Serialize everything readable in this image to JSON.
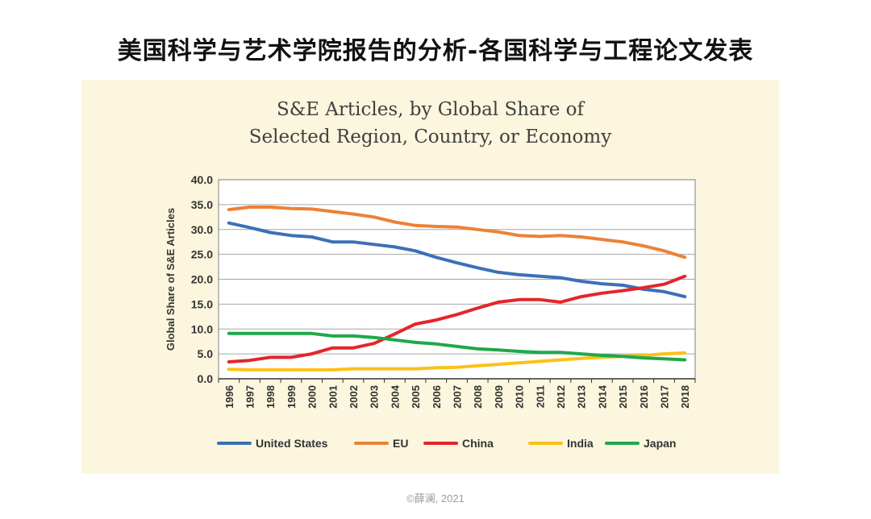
{
  "slide": {
    "title": "美国科学与艺术学院报告的分析-各国科学与工程论文发表",
    "footer": "©薛澜, 2021"
  },
  "colors": {
    "panel_background": "#fbf6dd",
    "United States": "#3c70b8",
    "EU": "#ec8235",
    "China": "#e3262b",
    "India": "#fcc117",
    "Japan": "#20a84a"
  },
  "chart_data": {
    "type": "line",
    "title_lines": [
      "S&E Articles, by Global Share of",
      "Selected Region, Country, or Economy"
    ],
    "xlabel": "",
    "ylabel": "Global Share of S&E Articles",
    "ylim": [
      0,
      40
    ],
    "yticks": [
      "0.0",
      "5.0",
      "10.0",
      "15.0",
      "20.0",
      "25.0",
      "30.0",
      "35.0",
      "40.0"
    ],
    "grid": true,
    "legend_position": "bottom",
    "x": [
      "1996",
      "1997",
      "1998",
      "1999",
      "2000",
      "2001",
      "2002",
      "2003",
      "2004",
      "2005",
      "2006",
      "2007",
      "2008",
      "2009",
      "2010",
      "2011",
      "2012",
      "2013",
      "2014",
      "2015",
      "2016",
      "2017",
      "2018"
    ],
    "series": [
      {
        "name": "United States",
        "values": [
          31.3,
          30.4,
          29.4,
          28.8,
          28.5,
          27.5,
          27.5,
          27.0,
          26.5,
          25.7,
          24.4,
          23.3,
          22.3,
          21.4,
          20.9,
          20.6,
          20.3,
          19.6,
          19.1,
          18.8,
          18.0,
          17.5,
          16.5
        ]
      },
      {
        "name": "EU",
        "values": [
          34.0,
          34.5,
          34.5,
          34.2,
          34.1,
          33.6,
          33.1,
          32.5,
          31.5,
          30.8,
          30.6,
          30.5,
          30.0,
          29.5,
          28.8,
          28.6,
          28.8,
          28.5,
          28.0,
          27.5,
          26.7,
          25.7,
          24.4
        ]
      },
      {
        "name": "China",
        "values": [
          3.4,
          3.7,
          4.3,
          4.3,
          5.0,
          6.2,
          6.2,
          7.1,
          9.0,
          11.0,
          11.8,
          12.9,
          14.2,
          15.4,
          15.9,
          15.9,
          15.4,
          16.5,
          17.2,
          17.7,
          18.3,
          19.0,
          20.6
        ]
      },
      {
        "name": "India",
        "values": [
          1.9,
          1.8,
          1.8,
          1.8,
          1.8,
          1.8,
          2.0,
          2.0,
          2.0,
          2.0,
          2.2,
          2.3,
          2.6,
          2.9,
          3.2,
          3.5,
          3.8,
          4.1,
          4.3,
          4.5,
          4.7,
          5.0,
          5.2
        ]
      },
      {
        "name": "Japan",
        "values": [
          9.1,
          9.1,
          9.1,
          9.1,
          9.1,
          8.6,
          8.6,
          8.3,
          7.8,
          7.3,
          7.0,
          6.5,
          6.0,
          5.8,
          5.5,
          5.3,
          5.3,
          5.0,
          4.7,
          4.5,
          4.2,
          4.0,
          3.8
        ]
      }
    ]
  }
}
